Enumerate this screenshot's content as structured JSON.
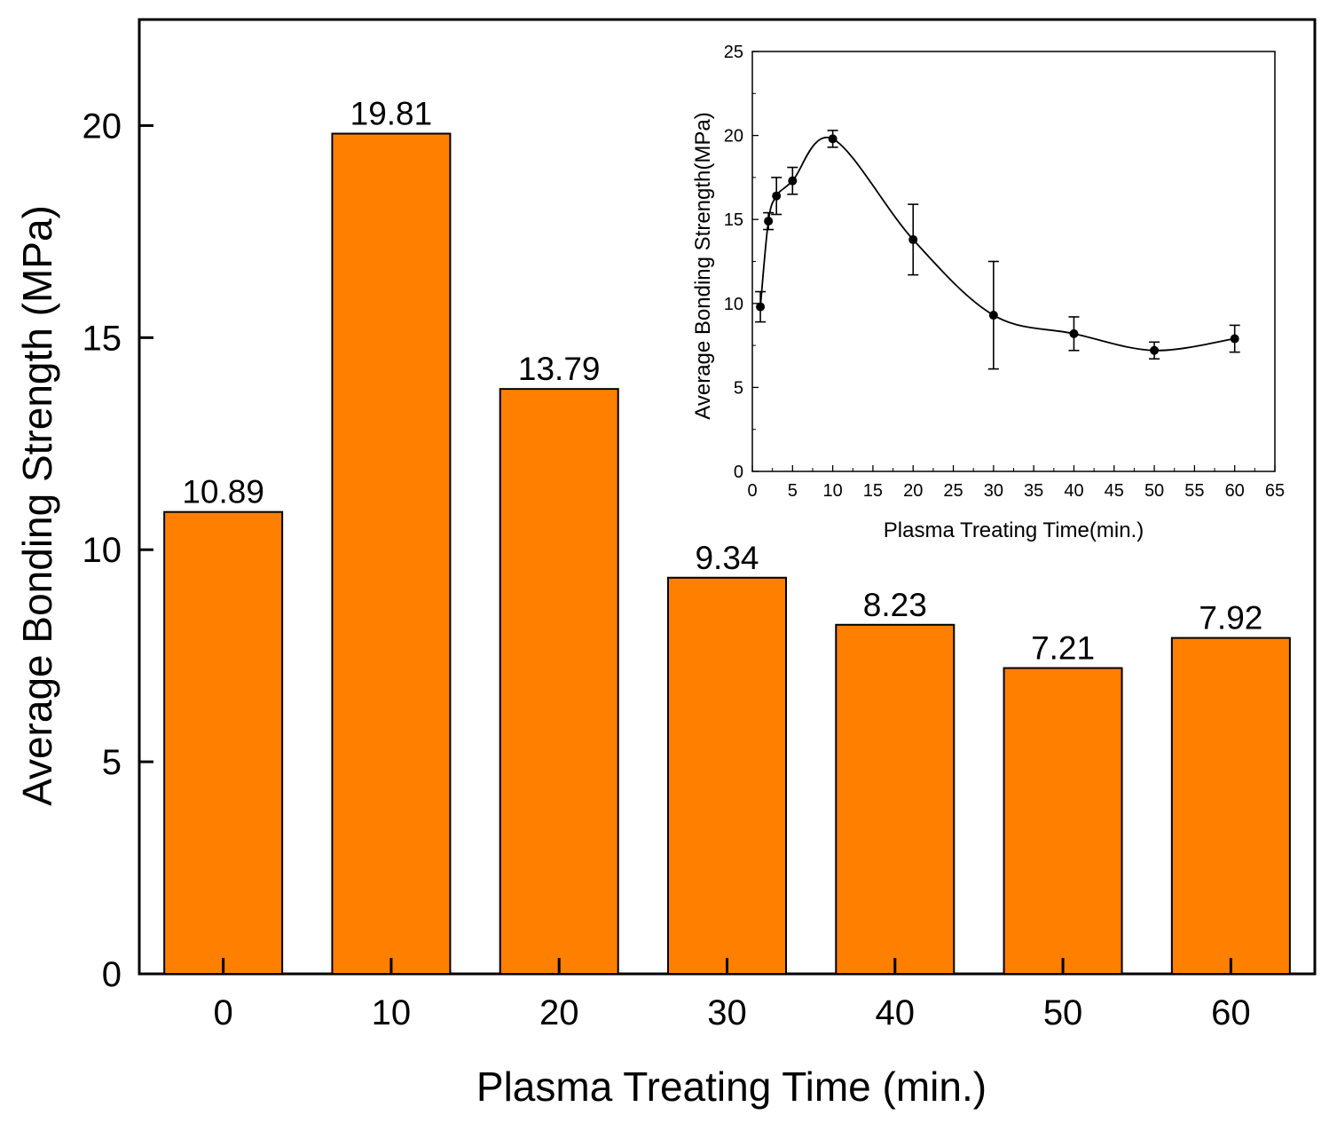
{
  "chart_data": [
    {
      "type": "bar",
      "role": "main",
      "categories": [
        "0",
        "10",
        "20",
        "30",
        "40",
        "50",
        "60"
      ],
      "values": [
        10.89,
        19.81,
        13.79,
        9.34,
        8.23,
        7.21,
        7.92
      ],
      "data_labels": [
        "10.89",
        "19.81",
        "13.79",
        "9.34",
        "8.23",
        "7.21",
        "7.92"
      ],
      "title": "",
      "xlabel": "Plasma Treating Time (min.)",
      "ylabel": "Average Bonding Strength (MPa)",
      "ylim": [
        0,
        22.5
      ],
      "yticks": [
        0,
        5,
        10,
        15,
        20
      ],
      "ytick_labels": [
        "0",
        "5",
        "10",
        "15",
        "20"
      ],
      "bar_color": "#ff8000",
      "grid": false,
      "legend": "none"
    },
    {
      "type": "line",
      "role": "inset",
      "legend_position": "top-right",
      "x": [
        1,
        2,
        3,
        5,
        10,
        20,
        30,
        40,
        50,
        60
      ],
      "y": [
        9.8,
        14.9,
        16.4,
        17.3,
        19.8,
        13.8,
        9.3,
        8.2,
        7.2,
        7.9
      ],
      "error": [
        0.9,
        0.5,
        1.1,
        0.8,
        0.5,
        2.1,
        3.2,
        1.0,
        0.5,
        0.8
      ],
      "title": "",
      "xlabel": "Plasma Treating Time(min.)",
      "ylabel": "Average Bonding Strength(MPa)",
      "xlim": [
        0,
        65
      ],
      "ylim": [
        0,
        25
      ],
      "xticks": [
        0,
        5,
        10,
        15,
        20,
        25,
        30,
        35,
        40,
        45,
        50,
        55,
        60,
        65
      ],
      "xtick_labels": [
        "0",
        "5",
        "10",
        "15",
        "20",
        "25",
        "30",
        "35",
        "40",
        "45",
        "50",
        "55",
        "60",
        "65"
      ],
      "yticks": [
        0,
        5,
        10,
        15,
        20,
        25
      ],
      "ytick_labels": [
        "0",
        "5",
        "10",
        "15",
        "20",
        "25"
      ],
      "marker_color": "#000000",
      "grid": false
    }
  ]
}
